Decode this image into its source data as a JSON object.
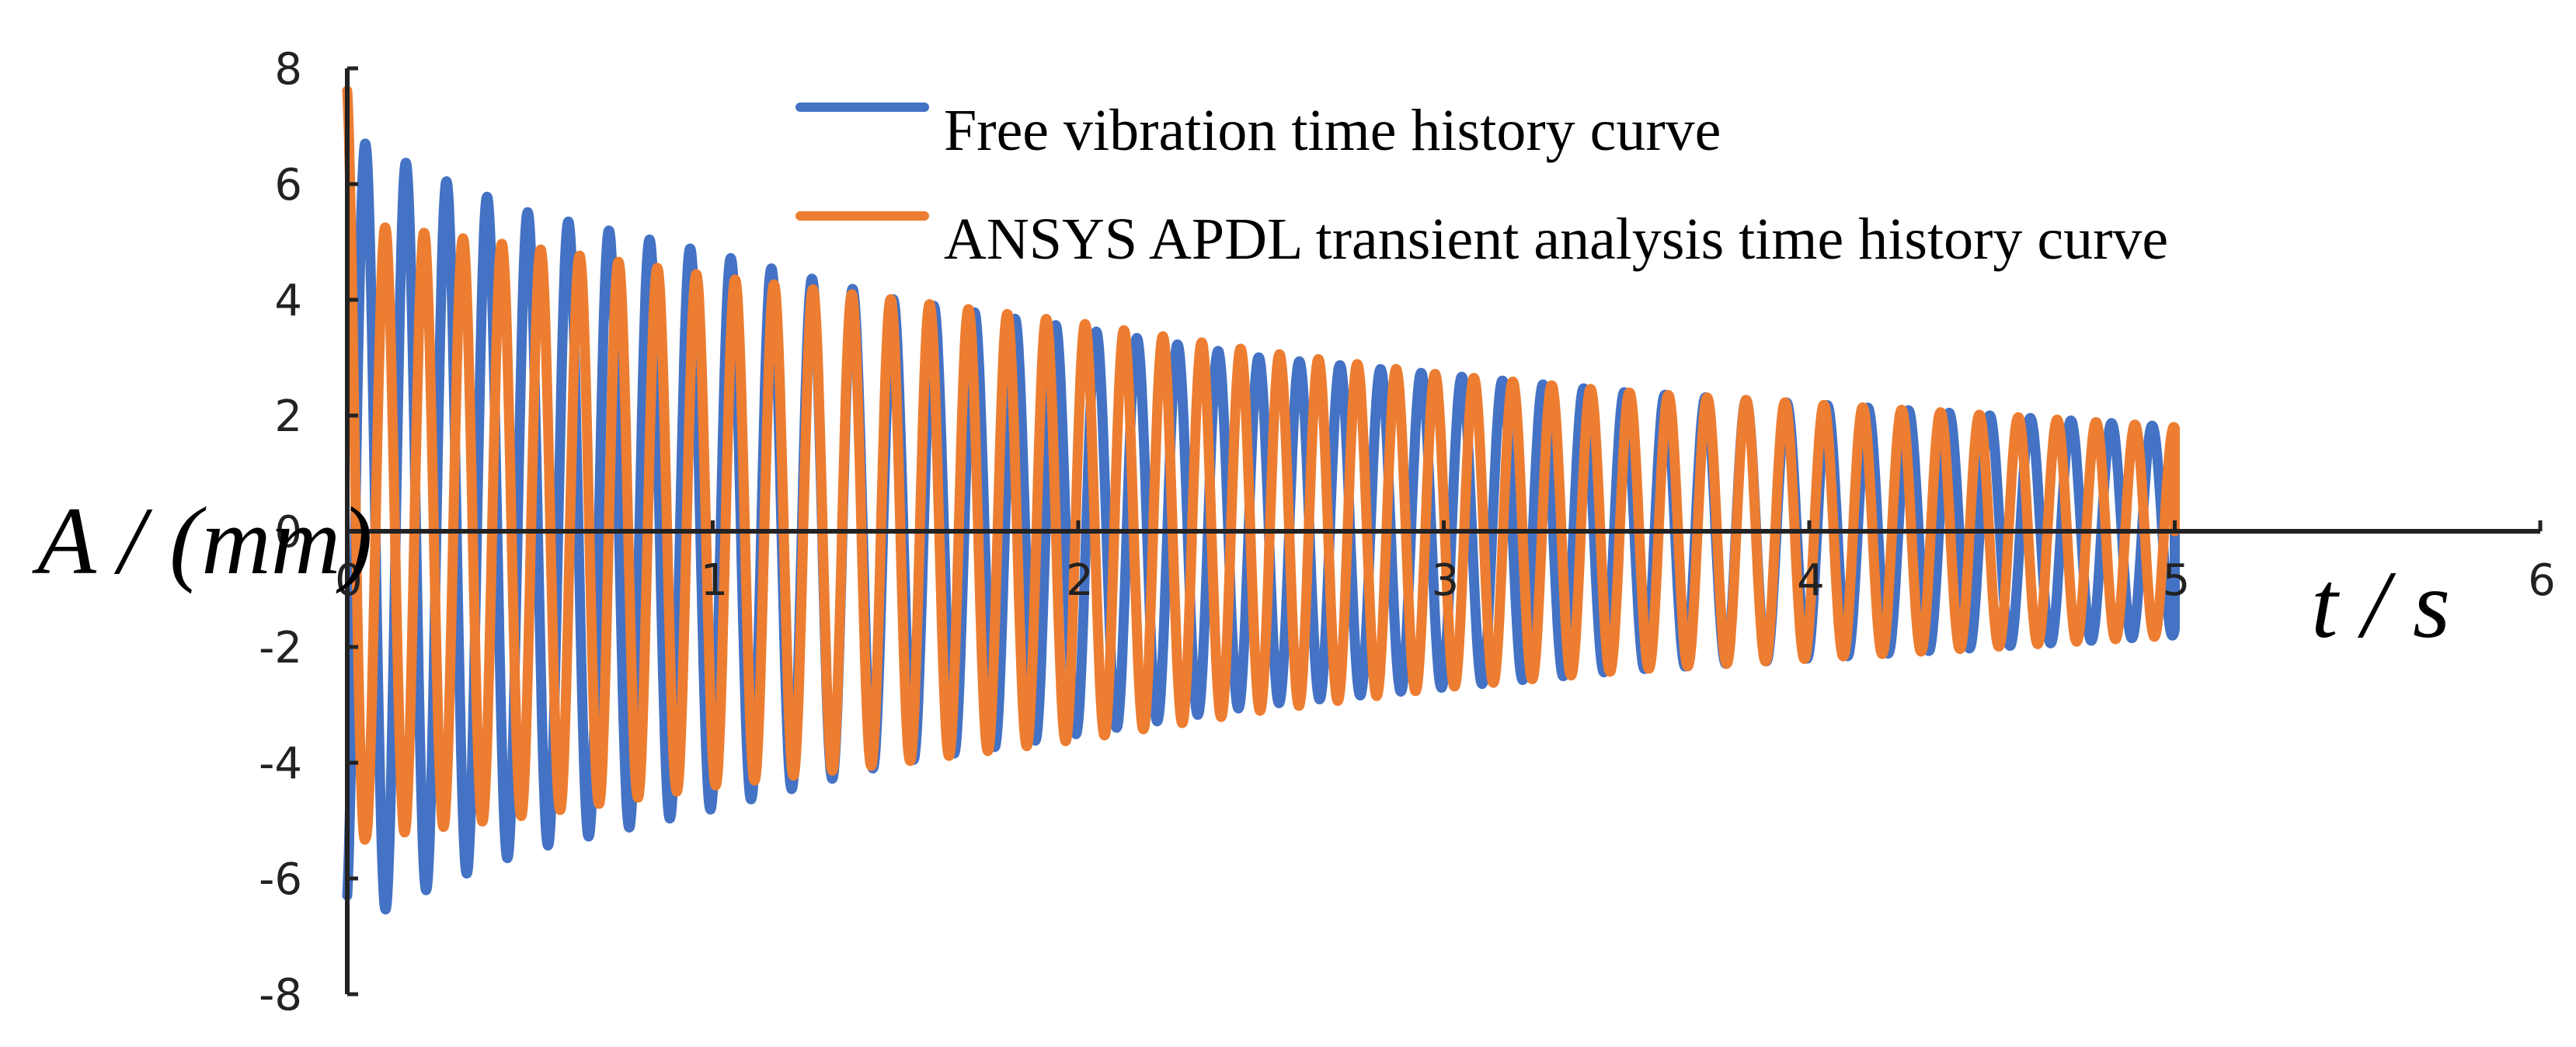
{
  "chart_data": {
    "type": "line",
    "title": "",
    "xlabel": "t / s",
    "ylabel": "A / (mm)",
    "xlim": [
      0,
      6
    ],
    "ylim": [
      -8,
      8
    ],
    "x_ticks": [
      "0",
      "1",
      "2",
      "3",
      "4",
      "5",
      "6"
    ],
    "y_ticks": [
      "8",
      "6",
      "4",
      "2",
      "0",
      "-2",
      "-4",
      "-6",
      "-8"
    ],
    "grid": false,
    "legend_position": "top",
    "x_range_of_data": [
      0,
      5
    ],
    "series": [
      {
        "name": "Free vibration time history curve",
        "color": "#4472C4",
        "oscillation_frequency_hz": 9.0,
        "peak_amplitude_mm": [
          {
            "t": 0.05,
            "A": 6.7
          },
          {
            "t": 0.25,
            "A": 6.1
          },
          {
            "t": 0.5,
            "A": 5.5
          },
          {
            "t": 1.0,
            "A": 4.8
          },
          {
            "t": 1.5,
            "A": 4.0
          },
          {
            "t": 2.0,
            "A": 3.5
          },
          {
            "t": 2.5,
            "A": 3.0
          },
          {
            "t": 3.0,
            "A": 2.7
          },
          {
            "t": 3.5,
            "A": 2.4
          },
          {
            "t": 4.0,
            "A": 2.2
          },
          {
            "t": 4.5,
            "A": 2.0
          },
          {
            "t": 5.0,
            "A": 1.8
          }
        ]
      },
      {
        "name": "ANSYS APDL transient analysis time history curve",
        "color": "#ED7D31",
        "oscillation_frequency_hz": 9.4,
        "peak_amplitude_mm": [
          {
            "t": 0.0,
            "A": 7.7
          },
          {
            "t": 0.05,
            "A": 5.3
          },
          {
            "t": 0.5,
            "A": 4.9
          },
          {
            "t": 1.0,
            "A": 4.4
          },
          {
            "t": 1.5,
            "A": 4.0
          },
          {
            "t": 2.0,
            "A": 3.6
          },
          {
            "t": 2.5,
            "A": 3.1
          },
          {
            "t": 3.0,
            "A": 2.7
          },
          {
            "t": 3.5,
            "A": 2.4
          },
          {
            "t": 4.0,
            "A": 2.2
          },
          {
            "t": 4.5,
            "A": 2.0
          },
          {
            "t": 5.0,
            "A": 1.8
          }
        ]
      }
    ]
  }
}
